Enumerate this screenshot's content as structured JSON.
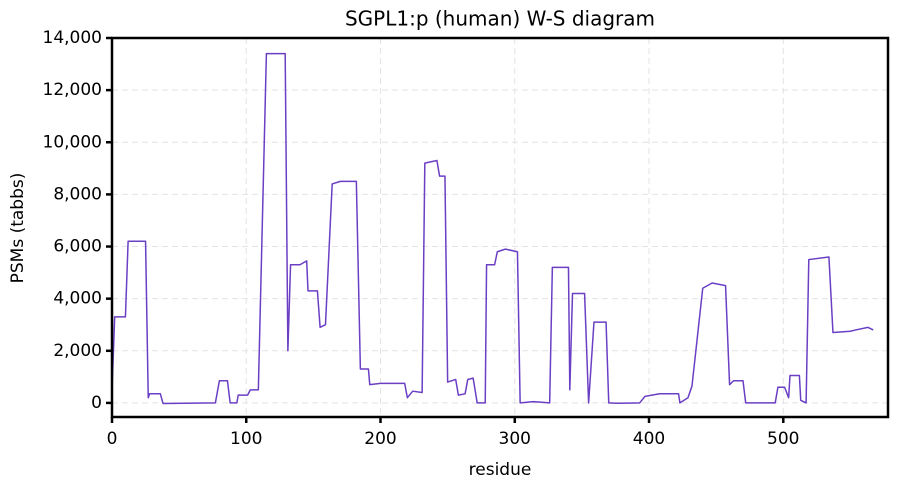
{
  "chart_data": {
    "type": "line",
    "title": "SGPL1:p (human) W-S diagram",
    "xlabel": "residue",
    "ylabel": "PSMs (tabbs)",
    "xlim": [
      0,
      578
    ],
    "ylim": [
      -540,
      14000
    ],
    "xticks": [
      0,
      100,
      200,
      300,
      400,
      500
    ],
    "yticks": [
      0,
      {
        "value": 2000,
        "label": "2,000"
      },
      {
        "value": 4000,
        "label": "4,000"
      },
      {
        "value": 6000,
        "label": "6,000"
      },
      {
        "value": 8000,
        "label": "8,000"
      },
      {
        "value": 10000,
        "label": "10,000"
      },
      {
        "value": 12000,
        "label": "12,000"
      },
      {
        "value": 14000,
        "label": "14,000"
      }
    ],
    "grid": true,
    "color": "#6a3fc4",
    "x": [
      0,
      2,
      10,
      12,
      25,
      27,
      28,
      36,
      38,
      77,
      80,
      86,
      88,
      93,
      94,
      101,
      103,
      109,
      115,
      129,
      131,
      133,
      140,
      145,
      146,
      153,
      155,
      159,
      164,
      170,
      182,
      185,
      191,
      192,
      200,
      218,
      220,
      224,
      231,
      233,
      242,
      244,
      248,
      250,
      256,
      258,
      263,
      265,
      269,
      272,
      278,
      279,
      285,
      287,
      293,
      302,
      304,
      314,
      326,
      328,
      340,
      341,
      343,
      352,
      355,
      359,
      368,
      370,
      376,
      393,
      397,
      408,
      422,
      423,
      429,
      432,
      440,
      447,
      457,
      460,
      463,
      470,
      472,
      494,
      496,
      501,
      504,
      505,
      512,
      513,
      517,
      519,
      534,
      537,
      550,
      554,
      563,
      567
    ],
    "values": [
      500,
      3300,
      3300,
      6200,
      6200,
      200,
      350,
      350,
      -20,
      0,
      850,
      850,
      0,
      0,
      300,
      300,
      500,
      500,
      13400,
      13400,
      2000,
      5300,
      5300,
      5450,
      4300,
      4300,
      2900,
      3000,
      8400,
      8500,
      8500,
      1300,
      1300,
      700,
      750,
      750,
      200,
      450,
      400,
      9200,
      9300,
      8700,
      8700,
      800,
      900,
      300,
      350,
      900,
      950,
      0,
      0,
      5300,
      5300,
      5800,
      5900,
      5800,
      0,
      50,
      0,
      5200,
      5200,
      500,
      4200,
      4200,
      0,
      3100,
      3100,
      0,
      -10,
      0,
      250,
      350,
      350,
      0,
      200,
      650,
      4400,
      4600,
      4500,
      700,
      850,
      850,
      0,
      0,
      600,
      600,
      200,
      1050,
      1050,
      100,
      0,
      5500,
      5600,
      2700,
      2750,
      2800,
      2900,
      2800
    ]
  }
}
